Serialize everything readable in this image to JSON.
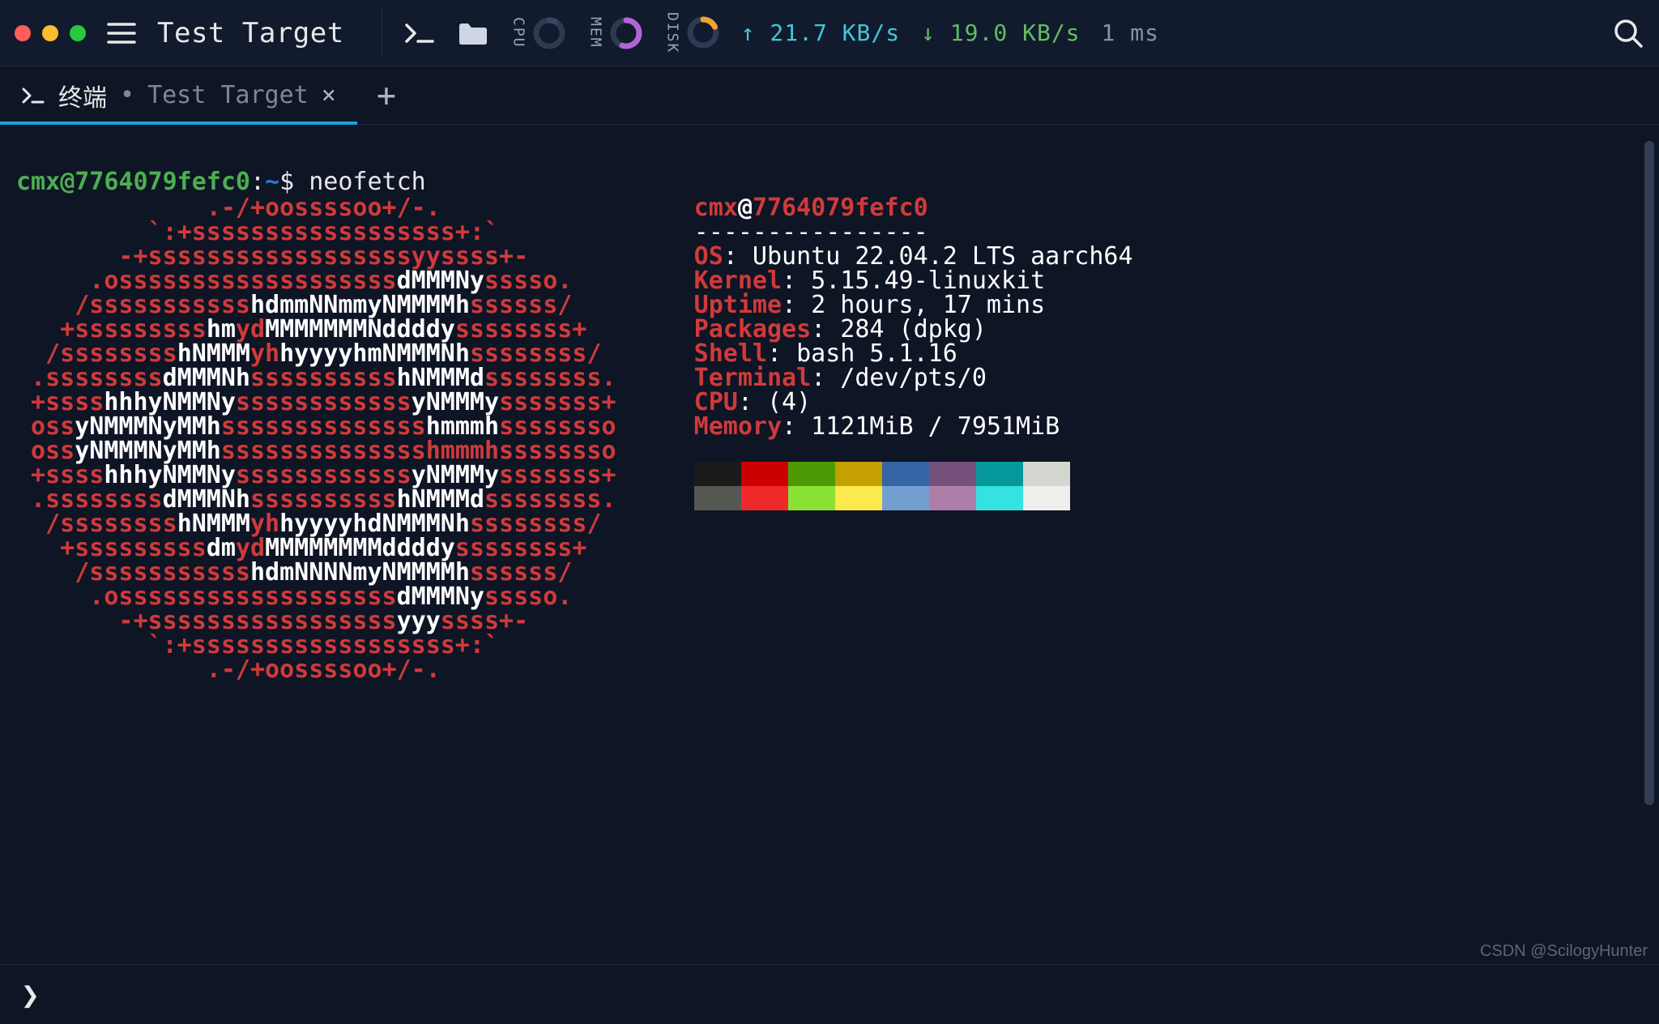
{
  "colors": {
    "bg": "#0e1525",
    "titlebar_bg": "#121a2e",
    "border": "#1f2a3f",
    "text": "#e8e8e8",
    "muted": "#8892a5",
    "accent_tab": "#1aa0d8",
    "prompt_green": "#4caf50",
    "prompt_blue": "#2e7bd6",
    "ascii_red": "#d13a3a",
    "ascii_white": "#ffffff",
    "up_arrow": "#3ec9d6",
    "down_arrow": "#5fbf5f"
  },
  "traffic_lights": [
    "#ff5f57",
    "#febc2e",
    "#28c840"
  ],
  "titlebar": {
    "title": "Test Target",
    "metrics": {
      "cpu": {
        "label": "CPU",
        "ring_track": "#2f3a52",
        "ring_fg": "#3b4660",
        "value_pct": 8
      },
      "mem": {
        "label": "MEM",
        "ring_track": "#2f3a52",
        "ring_fg": "#b264d6",
        "value_pct": 55
      },
      "disk": {
        "label": "DISK",
        "ring_track": "#2f3a52",
        "ring_fg": "#f0a52e",
        "value_pct": 18
      }
    },
    "network": {
      "up_label": "↑ 21.7 KB/s",
      "down_label": "↓ 19.0 KB/s",
      "latency_label": "1 ms"
    }
  },
  "tabs": {
    "active": {
      "label": "终端",
      "dirty_indicator": "•",
      "subtitle": "Test Target",
      "close_glyph": "×"
    },
    "new_tab_glyph": "+"
  },
  "prompt": {
    "user": "cmx",
    "at": "@",
    "host": "7764079fefc0",
    "colon": ":",
    "path": "~",
    "sigil": "$",
    "command": "neofetch"
  },
  "ascii_art": [
    [
      [
        "r",
        "             .-/+oossssoo+/-.             "
      ]
    ],
    [
      [
        "r",
        "         `:+ssssssssssssssssss+:`         "
      ]
    ],
    [
      [
        "r",
        "       -+ssssssssssssssssssyyssss+-       "
      ]
    ],
    [
      [
        "r",
        "     .osssssssssssssssssss"
      ],
      [
        "w",
        "dMMMNy"
      ],
      [
        "r",
        "sssso.     "
      ]
    ],
    [
      [
        "r",
        "    /sssssssssss"
      ],
      [
        "w",
        "hdmmNNmmyNMMMMh"
      ],
      [
        "r",
        "ssssss/    "
      ]
    ],
    [
      [
        "r",
        "   +sssssssss"
      ],
      [
        "w",
        "hm"
      ],
      [
        "r",
        "yd"
      ],
      [
        "w",
        "MMMMMMMNddddy"
      ],
      [
        "r",
        "ssssssss+   "
      ]
    ],
    [
      [
        "r",
        "  /ssssssss"
      ],
      [
        "w",
        "hNMMM"
      ],
      [
        "r",
        "yh"
      ],
      [
        "w",
        "hyyyyhmNMMMNh"
      ],
      [
        "r",
        "ssssssss/  "
      ]
    ],
    [
      [
        "r",
        " .ssssssss"
      ],
      [
        "w",
        "dMMMNh"
      ],
      [
        "r",
        "ssssssssss"
      ],
      [
        "w",
        "hNMMMd"
      ],
      [
        "r",
        "ssssssss. "
      ]
    ],
    [
      [
        "r",
        " +ssss"
      ],
      [
        "w",
        "hhhyNMMNy"
      ],
      [
        "r",
        "ssssssssssss"
      ],
      [
        "w",
        "yNMMMy"
      ],
      [
        "r",
        "sssssss+ "
      ]
    ],
    [
      [
        "r",
        " oss"
      ],
      [
        "w",
        "yNMMMNyMMh"
      ],
      [
        "r",
        "ssssssssssssss"
      ],
      [
        "w",
        "hmmmh"
      ],
      [
        "r",
        "ssssssso "
      ]
    ],
    [
      [
        "r",
        " oss"
      ],
      [
        "w",
        "yNMMMNyMMh"
      ],
      [
        "r",
        "sssssssssssssshmmmh"
      ],
      [
        "r",
        "ssssssso "
      ]
    ],
    [
      [
        "r",
        " +ssss"
      ],
      [
        "w",
        "hhhyNMMNy"
      ],
      [
        "r",
        "ssssssssssss"
      ],
      [
        "w",
        "yNMMMy"
      ],
      [
        "r",
        "sssssss+ "
      ]
    ],
    [
      [
        "r",
        " .ssssssss"
      ],
      [
        "w",
        "dMMMNh"
      ],
      [
        "r",
        "ssssssssss"
      ],
      [
        "w",
        "hNMMMd"
      ],
      [
        "r",
        "ssssssss. "
      ]
    ],
    [
      [
        "r",
        "  /ssssssss"
      ],
      [
        "w",
        "hNMMM"
      ],
      [
        "r",
        "yh"
      ],
      [
        "w",
        "hyyyyhdNMMMNh"
      ],
      [
        "r",
        "ssssssss/  "
      ]
    ],
    [
      [
        "r",
        "   +sssssssss"
      ],
      [
        "w",
        "dm"
      ],
      [
        "r",
        "yd"
      ],
      [
        "w",
        "MMMMMMMMddddy"
      ],
      [
        "r",
        "ssssssss+   "
      ]
    ],
    [
      [
        "r",
        "    /sssssssssss"
      ],
      [
        "w",
        "hdmNNNNmyNMMMMh"
      ],
      [
        "r",
        "ssssss/    "
      ]
    ],
    [
      [
        "r",
        "     .osssssssssssssssssss"
      ],
      [
        "w",
        "dMMMNy"
      ],
      [
        "r",
        "sssso.     "
      ]
    ],
    [
      [
        "r",
        "       -+sssssssssssssssss"
      ],
      [
        "w",
        "yyy"
      ],
      [
        "r",
        "ssss+-       "
      ]
    ],
    [
      [
        "r",
        "         `:+ssssssssssssssssss+:`         "
      ]
    ],
    [
      [
        "r",
        "             .-/+oossssoo+/-.             "
      ]
    ]
  ],
  "info": {
    "header_user": "cmx",
    "header_at": "@",
    "header_host": "7764079fefc0",
    "separator": "----------------",
    "rows": [
      {
        "key": "OS",
        "value": ": Ubuntu 22.04.2 LTS aarch64"
      },
      {
        "key": "Kernel",
        "value": ": 5.15.49-linuxkit"
      },
      {
        "key": "Uptime",
        "value": ": 2 hours, 17 mins"
      },
      {
        "key": "Packages",
        "value": ": 284 (dpkg)"
      },
      {
        "key": "Shell",
        "value": ": bash 5.1.16"
      },
      {
        "key": "Terminal",
        "value": ": /dev/pts/0"
      },
      {
        "key": "CPU",
        "value": ": (4)"
      },
      {
        "key": "Memory",
        "value": ": 1121MiB / 7951MiB"
      }
    ],
    "swatches": {
      "row1": [
        "#1a1a1a",
        "#cc0000",
        "#4e9a06",
        "#c4a000",
        "#3465a4",
        "#75507b",
        "#06989a",
        "#d3d7cf"
      ],
      "row2": [
        "#555753",
        "#ef2929",
        "#8ae234",
        "#fce94f",
        "#729fcf",
        "#ad7fa8",
        "#34e2e2",
        "#eeeeec"
      ]
    }
  },
  "watermark": "CSDN @ScilogyHunter"
}
